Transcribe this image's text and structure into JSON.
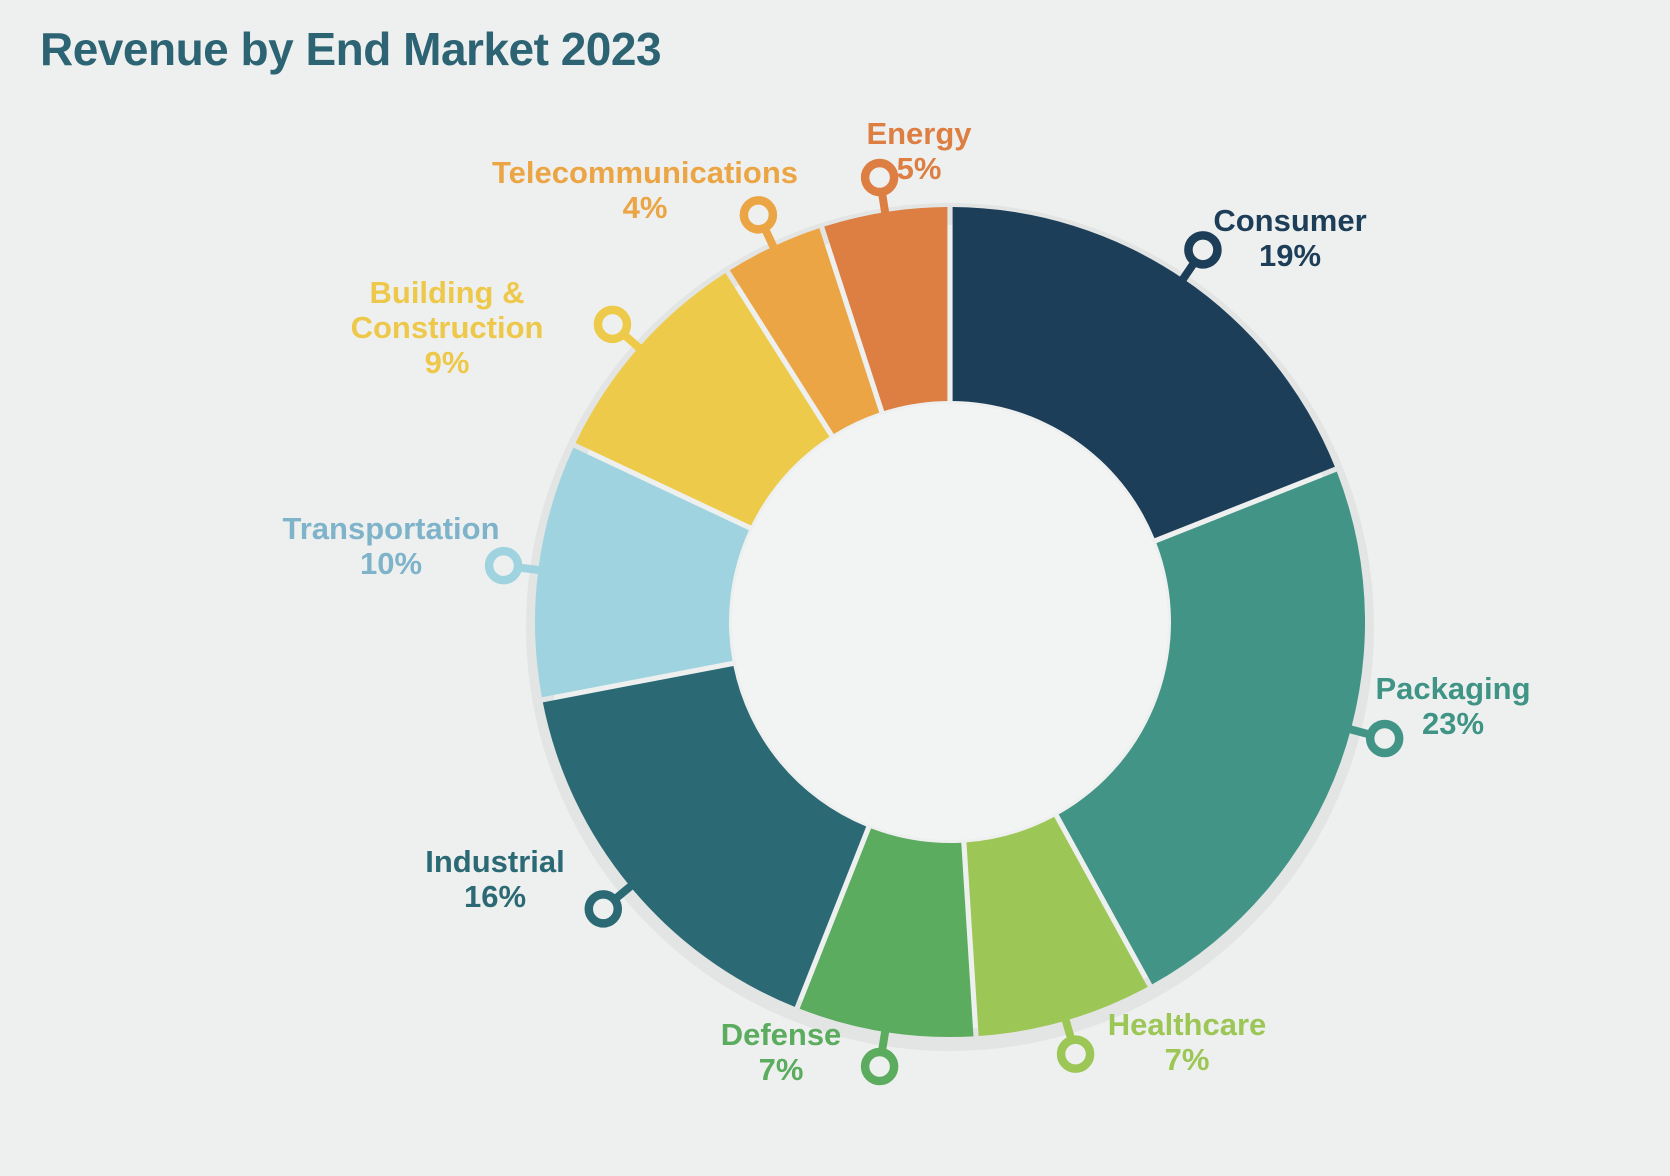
{
  "page": {
    "background_color": "#eef0ef",
    "hole_color": "#f2f4f3",
    "shadow_ring_color": "#e2e5e3"
  },
  "header": {
    "title": "Revenue by End Market 2023",
    "title_color": "#2d6474"
  },
  "chart_data": {
    "type": "pie",
    "variant": "donut",
    "title": "Revenue by End Market 2023",
    "value_unit": "percent",
    "start_angle_deg": 0,
    "direction": "clockwise",
    "legend_position": "outside-callout-labels",
    "total": 100,
    "segments": [
      {
        "label": "Consumer",
        "value": 19,
        "display": "19%",
        "lines": [
          "Consumer"
        ],
        "color": "#1d3e59",
        "text_color": "#1d3e59"
      },
      {
        "label": "Packaging",
        "value": 23,
        "display": "23%",
        "lines": [
          "Packaging"
        ],
        "color": "#429486",
        "text_color": "#3f9486"
      },
      {
        "label": "Healthcare",
        "value": 7,
        "display": "7%",
        "lines": [
          "Healthcare"
        ],
        "color": "#9cc655",
        "text_color": "#9cc655"
      },
      {
        "label": "Defense",
        "value": 7,
        "display": "7%",
        "lines": [
          "Defense"
        ],
        "color": "#5bac5e",
        "text_color": "#5bac5e"
      },
      {
        "label": "Industrial",
        "value": 16,
        "display": "16%",
        "lines": [
          "Industrial"
        ],
        "color": "#2b6a75",
        "text_color": "#2b6a75"
      },
      {
        "label": "Transportation",
        "value": 10,
        "display": "10%",
        "lines": [
          "Transportation"
        ],
        "color": "#a0d3e0",
        "text_color": "#7fb3ca"
      },
      {
        "label": "Building & Construction",
        "value": 9,
        "display": "9%",
        "lines": [
          "Building &",
          "Construction"
        ],
        "color": "#edca49",
        "text_color": "#eec84b"
      },
      {
        "label": "Telecommunications",
        "value": 4,
        "display": "4%",
        "lines": [
          "Telecommunications"
        ],
        "color": "#eba544",
        "text_color": "#eba544"
      },
      {
        "label": "Energy",
        "value": 5,
        "display": "5%",
        "lines": [
          "Energy"
        ],
        "color": "#dd7e42",
        "text_color": "#dd7e42"
      }
    ]
  }
}
